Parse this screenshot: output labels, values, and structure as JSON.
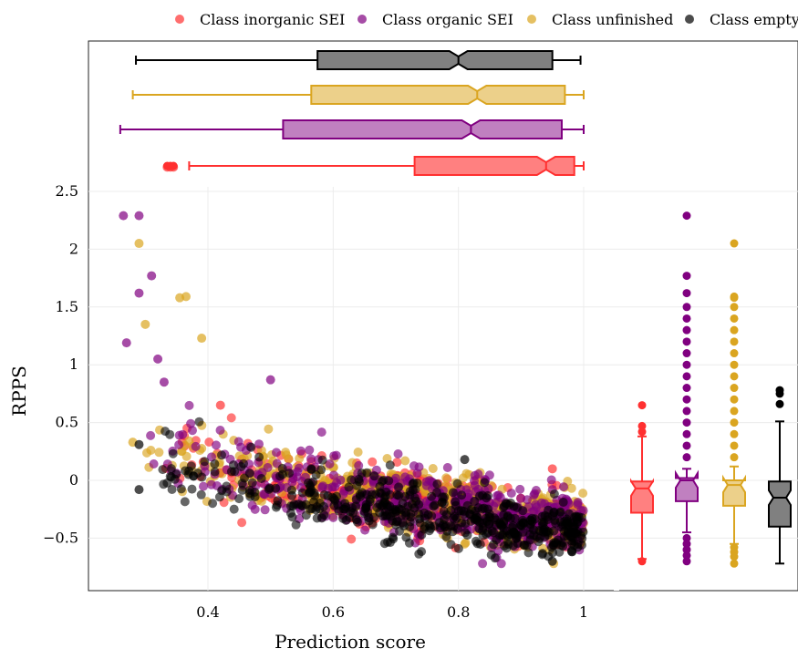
{
  "chart_data": {
    "type": "scatter",
    "xlabel": "Prediction score",
    "ylabel": "RPPS",
    "xlim": [
      0.2,
      1.0
    ],
    "ylim": [
      -0.95,
      2.5
    ],
    "x_ticks": [
      "0.4",
      "0.6",
      "0.8",
      "1"
    ],
    "x_tick_values": [
      0.4,
      0.6,
      0.8,
      1.0
    ],
    "y_ticks": [
      "2.5",
      "2",
      "1.5",
      "1",
      "0.5",
      "0",
      "−0.5"
    ],
    "y_tick_values": [
      2.5,
      2.0,
      1.5,
      1.0,
      0.5,
      0.0,
      -0.5
    ],
    "grid": true,
    "legend_position": "top",
    "series": [
      {
        "name": "Class inorganic SEI",
        "color": "#ff3030",
        "fill": "#ff8080",
        "count": 450,
        "x_range": [
          0.33,
          1.0
        ],
        "points": [
          [
            0.335,
            2.71
          ],
          [
            0.34,
            2.71
          ],
          [
            0.345,
            2.71
          ],
          [
            0.42,
            0.65
          ],
          [
            0.95,
            0.1
          ],
          [
            0.99,
            -0.5
          ]
        ],
        "x_box": {
          "whisker_low": 0.37,
          "q1": 0.73,
          "median": 0.94,
          "q3": 0.985,
          "whisker_high": 1.0,
          "outliers": [
            0.335,
            0.34,
            0.345
          ]
        },
        "y_box": {
          "whisker_low": -0.68,
          "q1": -0.28,
          "median": -0.07,
          "q3": -0.01,
          "whisker_high": 0.38,
          "outliers": [
            0.42,
            0.47,
            0.65,
            -0.7
          ]
        }
      },
      {
        "name": "Class organic SEI",
        "color": "#800080",
        "fill": "#c080c0",
        "count": 500,
        "x_range": [
          0.26,
          1.0
        ],
        "points": [
          [
            0.265,
            2.29
          ],
          [
            0.29,
            2.29
          ],
          [
            0.31,
            1.77
          ],
          [
            0.29,
            1.62
          ],
          [
            0.27,
            1.19
          ],
          [
            0.32,
            1.05
          ],
          [
            0.33,
            0.85
          ],
          [
            0.5,
            0.87
          ]
        ],
        "x_box": {
          "whisker_low": 0.26,
          "q1": 0.52,
          "median": 0.82,
          "q3": 0.965,
          "whisker_high": 1.0,
          "outliers": []
        },
        "y_box": {
          "whisker_low": -0.45,
          "q1": -0.18,
          "median": 0.0,
          "q3": 0.02,
          "whisker_high": 0.1,
          "outliers": [
            2.29,
            1.77,
            1.62,
            1.5,
            1.4,
            1.3,
            1.2,
            1.1,
            1.0,
            0.9,
            0.8,
            0.7,
            0.6,
            0.5,
            0.4,
            0.3,
            0.2,
            -0.5,
            -0.55,
            -0.6,
            -0.65,
            -0.7
          ]
        }
      },
      {
        "name": "Class unfinished",
        "color": "#daa520",
        "fill": "#ecd08a",
        "count": 550,
        "x_range": [
          0.28,
          1.0
        ],
        "points": [
          [
            0.29,
            2.05
          ],
          [
            0.365,
            1.59
          ],
          [
            0.355,
            1.58
          ],
          [
            0.3,
            1.35
          ],
          [
            0.39,
            1.23
          ],
          [
            0.28,
            0.33
          ]
        ],
        "x_box": {
          "whisker_low": 0.28,
          "q1": 0.565,
          "median": 0.83,
          "q3": 0.97,
          "whisker_high": 1.0,
          "outliers": []
        },
        "y_box": {
          "whisker_low": -0.55,
          "q1": -0.22,
          "median": -0.04,
          "q3": 0.0,
          "whisker_high": 0.12,
          "outliers": [
            2.05,
            1.59,
            1.58,
            1.5,
            1.4,
            1.3,
            1.2,
            1.1,
            1.0,
            0.9,
            0.8,
            0.7,
            0.6,
            0.5,
            0.4,
            0.3,
            0.2,
            -0.58,
            -0.62,
            -0.66,
            -0.72
          ]
        }
      },
      {
        "name": "Class empty",
        "color": "#000000",
        "fill": "#808080",
        "count": 500,
        "x_range": [
          0.29,
          1.0
        ],
        "points": [
          [
            0.29,
            0.31
          ],
          [
            0.29,
            -0.08
          ],
          [
            0.81,
            0.18
          ],
          [
            0.95,
            -0.7
          ]
        ],
        "x_box": {
          "whisker_low": 0.285,
          "q1": 0.575,
          "median": 0.8,
          "q3": 0.95,
          "whisker_high": 0.995,
          "outliers": []
        },
        "y_box": {
          "whisker_low": -0.72,
          "q1": -0.4,
          "median": -0.15,
          "q3": -0.01,
          "whisker_high": 0.51,
          "outliers": [
            0.66,
            0.75,
            0.78
          ]
        }
      }
    ]
  }
}
